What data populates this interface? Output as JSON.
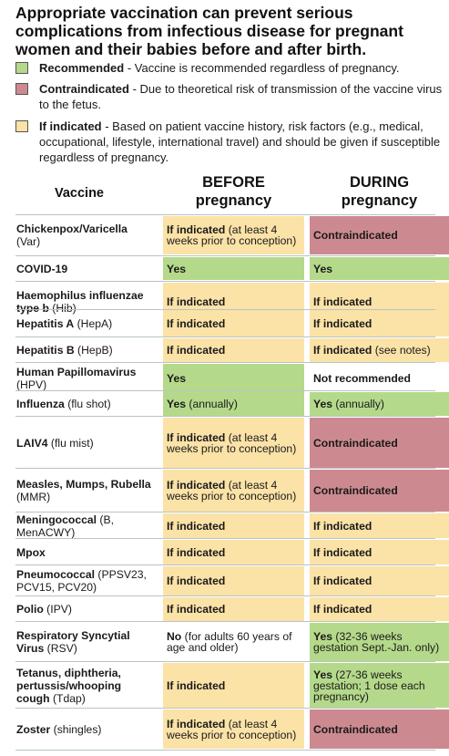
{
  "title": "Appropriate vaccination can prevent serious complications from infectious disease for pregnant women and their babies before and after birth.",
  "colors": {
    "recommended": "#b5d98a",
    "if_indicated": "#fbe2a7",
    "contraindicated": "#cc8a90",
    "none": "transparent"
  },
  "legend": [
    {
      "key": "recommended",
      "label": "Recommended",
      "desc": " - Vaccine is recommended regardless of pregnancy."
    },
    {
      "key": "contraindicated",
      "label": "Contraindicated",
      "desc": " - Due to theoretical risk of transmission of the vaccine virus to the fetus."
    },
    {
      "key": "if_indicated",
      "label": "If indicated",
      "desc": " - Based on patient vaccine history, risk factors (e.g., medical, occupational, lifestyle, international travel) and should be given if susceptible regardless of pregnancy."
    }
  ],
  "columns": {
    "vaccine": "Vaccine",
    "before_line1": "BEFORE",
    "before_line2": "pregnancy",
    "during_line1": "DURING",
    "during_line2": "pregnancy"
  },
  "rows": [
    {
      "id": "varicella",
      "name": "Chickenpox/Varicella",
      "abbr": " (Var)",
      "before": {
        "status": "if_indicated",
        "bold": "If indicated",
        "note": " (at least 4 weeks prior to conception)"
      },
      "during": {
        "status": "contraindicated",
        "bold": "Contraindicated",
        "note": ""
      }
    },
    {
      "id": "covid",
      "name": "COVID-19",
      "abbr": "",
      "before": {
        "status": "recommended",
        "bold": "Yes",
        "note": ""
      },
      "during": {
        "status": "recommended",
        "bold": "Yes",
        "note": ""
      }
    },
    {
      "id": "hib",
      "name": "Haemophilus influenzae type b",
      "abbr": " (Hib)",
      "before": {
        "status": "if_indicated",
        "bold": "If indicated",
        "note": ""
      },
      "during": {
        "status": "if_indicated",
        "bold": "If indicated",
        "note": ""
      }
    },
    {
      "id": "hepa",
      "name": "Hepatitis A",
      "abbr": " (HepA)",
      "before": {
        "status": "if_indicated",
        "bold": "If indicated",
        "note": ""
      },
      "during": {
        "status": "if_indicated",
        "bold": "If indicated",
        "note": ""
      }
    },
    {
      "id": "hepb",
      "name": "Hepatitis B",
      "abbr": " (HepB)",
      "before": {
        "status": "if_indicated",
        "bold": "If indicated",
        "note": ""
      },
      "during": {
        "status": "if_indicated",
        "bold": "If indicated",
        "note": " (see notes)"
      }
    },
    {
      "id": "hpv",
      "name": "Human Papillomavirus",
      "abbr": " (HPV)",
      "before": {
        "status": "recommended",
        "bold": "Yes",
        "note": ""
      },
      "during": {
        "status": "none",
        "bold": "Not recommended",
        "note": ""
      }
    },
    {
      "id": "flu",
      "name": "Influenza",
      "abbr": " (flu shot)",
      "before": {
        "status": "recommended",
        "bold": "Yes",
        "note": " (annually)"
      },
      "during": {
        "status": "recommended",
        "bold": "Yes",
        "note": " (annually)"
      }
    },
    {
      "id": "laiv4",
      "name": "LAIV4",
      "abbr": " (flu mist)",
      "before": {
        "status": "if_indicated",
        "bold": "If indicated",
        "note": " (at least 4 weeks prior to conception)"
      },
      "during": {
        "status": "contraindicated",
        "bold": "Contraindicated",
        "note": ""
      }
    },
    {
      "id": "mmr",
      "name": "Measles, Mumps, Rubella",
      "abbr": " (MMR)",
      "before": {
        "status": "if_indicated",
        "bold": "If indicated",
        "note": " (at least 4 weeks prior to conception)"
      },
      "during": {
        "status": "contraindicated",
        "bold": "Contraindicated",
        "note": ""
      }
    },
    {
      "id": "mening",
      "name": "Meningococcal",
      "abbr": " (B, MenACWY)",
      "before": {
        "status": "if_indicated",
        "bold": "If indicated",
        "note": ""
      },
      "during": {
        "status": "if_indicated",
        "bold": "If indicated",
        "note": ""
      }
    },
    {
      "id": "mpox",
      "name": "Mpox",
      "abbr": "",
      "before": {
        "status": "if_indicated",
        "bold": "If indicated",
        "note": ""
      },
      "during": {
        "status": "if_indicated",
        "bold": "If indicated",
        "note": ""
      }
    },
    {
      "id": "pneumo",
      "name": "Pneumococcal",
      "abbr": " (PPSV23, PCV15, PCV20)",
      "before": {
        "status": "if_indicated",
        "bold": "If indicated",
        "note": ""
      },
      "during": {
        "status": "if_indicated",
        "bold": "If indicated",
        "note": ""
      }
    },
    {
      "id": "polio",
      "name": "Polio",
      "abbr": " (IPV)",
      "before": {
        "status": "if_indicated",
        "bold": "If indicated",
        "note": ""
      },
      "during": {
        "status": "if_indicated",
        "bold": "If indicated",
        "note": ""
      }
    },
    {
      "id": "rsv",
      "name": "Respiratory Syncytial Virus",
      "abbr": " (RSV)",
      "before": {
        "status": "none",
        "bold": "No",
        "note": " (for adults 60 years of age and older)"
      },
      "during": {
        "status": "recommended",
        "bold": "Yes",
        "note": " (32-36 weeks gestation Sept.-Jan. only)"
      }
    },
    {
      "id": "tdap",
      "name": "Tetanus, diphtheria, pertussis/whooping cough",
      "abbr": " (Tdap)",
      "before": {
        "status": "if_indicated",
        "bold": "If indicated",
        "note": ""
      },
      "during": {
        "status": "recommended",
        "bold": "Yes",
        "note": " (27-36 weeks gestation; 1 dose each pregnancy)"
      }
    },
    {
      "id": "zoster",
      "name": "Zoster",
      "abbr": " (shingles)",
      "before": {
        "status": "if_indicated",
        "bold": "If indicated",
        "note": " (at least 4 weeks prior to conception)"
      },
      "during": {
        "status": "contraindicated",
        "bold": "Contraindicated",
        "note": ""
      }
    }
  ]
}
